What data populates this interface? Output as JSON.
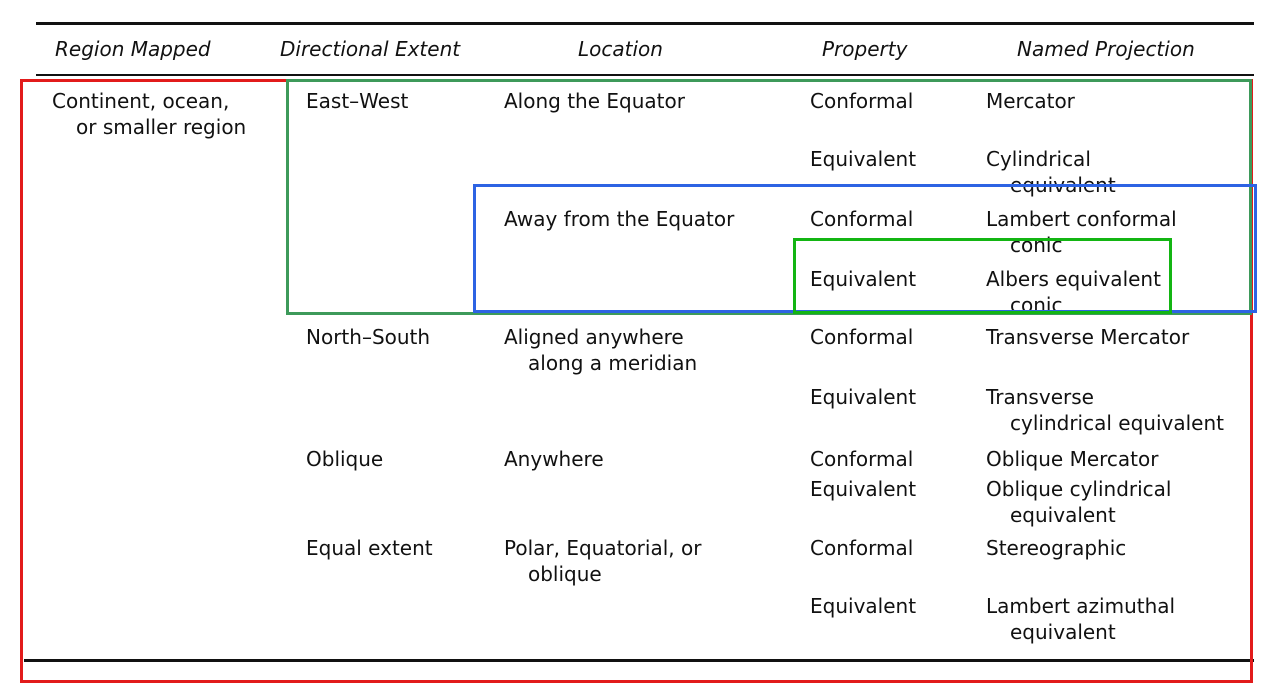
{
  "headers": {
    "region": "Region Mapped",
    "extent": "Directional Extent",
    "location": "Location",
    "property": "Property",
    "projection": "Named Projection"
  },
  "region": {
    "line1": "Continent, ocean,",
    "line2": "or smaller region"
  },
  "extents": {
    "east_west": "East–West",
    "north_south": "North–South",
    "oblique": "Oblique",
    "equal": "Equal extent"
  },
  "locations": {
    "equator": "Along the Equator",
    "away": "Away from the Equator",
    "meridian_1": "Aligned anywhere",
    "meridian_2": "along a meridian",
    "anywhere": "Anywhere",
    "polar_1": "Polar, Equatorial, or",
    "polar_2": "oblique"
  },
  "properties": {
    "conformal": "Conformal",
    "equivalent": "Equivalent"
  },
  "projections": {
    "mercator": "Mercator",
    "cyl_eq_1": "Cylindrical",
    "cyl_eq_2": "equivalent",
    "lambert_cc_1": "Lambert conformal",
    "lambert_cc_2": "conic",
    "albers_1": "Albers equivalent",
    "albers_2": "conic",
    "transverse_mercator": "Transverse Mercator",
    "tce_1": "Transverse",
    "tce_2": "cylindrical equivalent",
    "oblique_mercator": "Oblique Mercator",
    "oce_1": "Oblique cylindrical",
    "oce_2": "equivalent",
    "stereographic": "Stereographic",
    "lae_1": "Lambert azimuthal",
    "lae_2": "equivalent"
  },
  "highlight_colors": {
    "red": "#e21b1b",
    "green": "#3d9a5a",
    "blue": "#2d63e3",
    "lime": "#13b513"
  }
}
